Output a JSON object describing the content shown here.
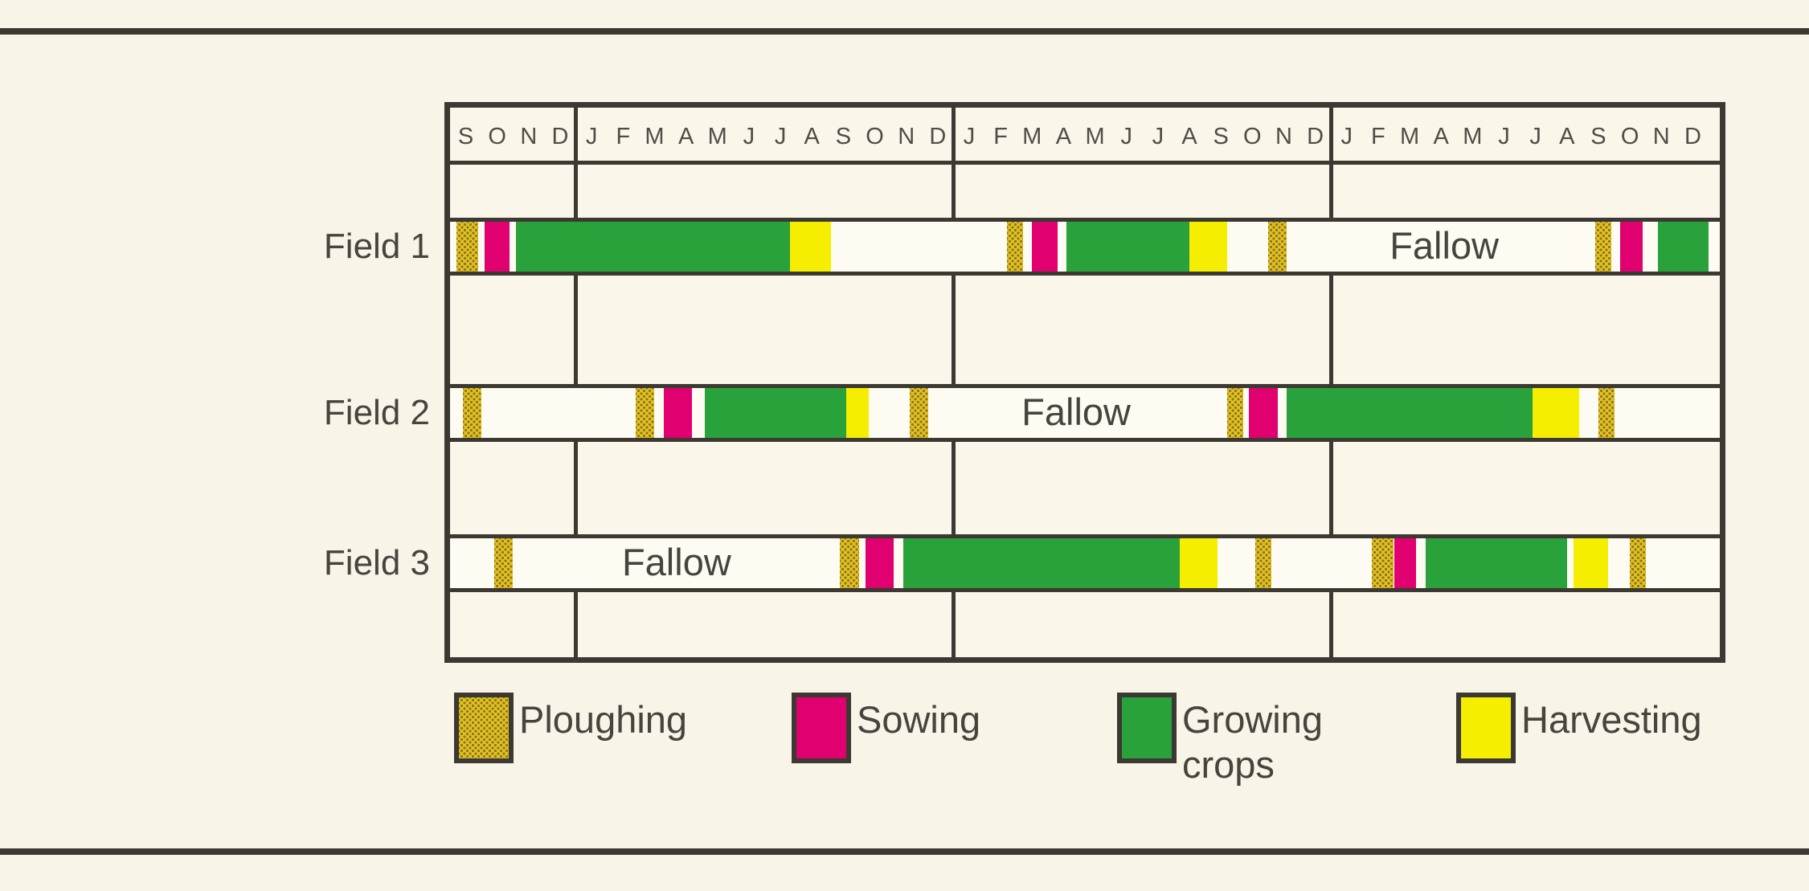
{
  "page": {
    "background_color": "#f8f4e7",
    "line_color": "#3c3933",
    "text_color": "#47443e"
  },
  "chart_data": {
    "type": "bar",
    "subtype": "gantt-crop-rotation-calendar",
    "title": "",
    "x_unit": "month",
    "x_range": [
      0,
      40
    ],
    "grid": true,
    "legend_position": "bottom",
    "month_labels": [
      "S",
      "O",
      "N",
      "D",
      "J",
      "F",
      "M",
      "A",
      "M",
      "J",
      "J",
      "A",
      "S",
      "O",
      "N",
      "D",
      "J",
      "F",
      "M",
      "A",
      "M",
      "J",
      "J",
      "A",
      "S",
      "O",
      "N",
      "D",
      "J",
      "F",
      "M",
      "A",
      "M",
      "J",
      "J",
      "A",
      "S",
      "O",
      "N",
      "D"
    ],
    "year_dividers_after_month": [
      4,
      16,
      28
    ],
    "activities": [
      {
        "name": "Ploughing",
        "key": "ploughing",
        "color": "#dfc02c",
        "dot_color": "#8f7606",
        "pattern": "dotted-hatch"
      },
      {
        "name": "Sowing",
        "key": "sowing",
        "color": "#e10070"
      },
      {
        "name": "Growing crops",
        "key": "growing-crops",
        "color": "#2aa23c"
      },
      {
        "name": "Harvesting",
        "key": "harvesting",
        "color": "#f5ee00"
      }
    ],
    "fallow_text": "Fallow",
    "rows": [
      {
        "label": "Field 1",
        "segments": [
          {
            "activity": "Ploughing",
            "start": 0.2,
            "end": 0.9
          },
          {
            "activity": "Sowing",
            "start": 1.1,
            "end": 1.9
          },
          {
            "activity": "Growing crops",
            "start": 2.1,
            "end": 10.8
          },
          {
            "activity": "Harvesting",
            "start": 10.8,
            "end": 12.1
          },
          {
            "activity": "Ploughing",
            "start": 17.7,
            "end": 18.2
          },
          {
            "activity": "Sowing",
            "start": 18.5,
            "end": 19.3
          },
          {
            "activity": "Growing crops",
            "start": 19.6,
            "end": 23.5
          },
          {
            "activity": "Harvesting",
            "start": 23.5,
            "end": 24.7
          },
          {
            "activity": "Ploughing",
            "start": 26.0,
            "end": 26.6
          },
          {
            "activity": "Ploughing",
            "start": 36.4,
            "end": 36.9
          },
          {
            "activity": "Sowing",
            "start": 37.2,
            "end": 37.9
          },
          {
            "activity": "Growing crops",
            "start": 38.4,
            "end": 40
          }
        ],
        "fallow": {
          "start": 26.6,
          "end": 36.4,
          "center_month": 31.6
        }
      },
      {
        "label": "Field 2",
        "segments": [
          {
            "activity": "Ploughing",
            "start": 0.4,
            "end": 1.0
          },
          {
            "activity": "Ploughing",
            "start": 5.9,
            "end": 6.5
          },
          {
            "activity": "Sowing",
            "start": 6.8,
            "end": 7.7
          },
          {
            "activity": "Growing crops",
            "start": 8.1,
            "end": 12.6
          },
          {
            "activity": "Harvesting",
            "start": 12.6,
            "end": 13.3
          },
          {
            "activity": "Ploughing",
            "start": 14.6,
            "end": 15.2
          },
          {
            "activity": "Ploughing",
            "start": 24.7,
            "end": 25.2
          },
          {
            "activity": "Sowing",
            "start": 25.4,
            "end": 26.3
          },
          {
            "activity": "Growing crops",
            "start": 26.6,
            "end": 34.4
          },
          {
            "activity": "Harvesting",
            "start": 34.4,
            "end": 35.9
          },
          {
            "activity": "Ploughing",
            "start": 36.5,
            "end": 37.0
          }
        ],
        "fallow": {
          "start": 15.2,
          "end": 24.7,
          "center_month": 19.9
        }
      },
      {
        "label": "Field 3",
        "segments": [
          {
            "activity": "Ploughing",
            "start": 1.4,
            "end": 2.0
          },
          {
            "activity": "Ploughing",
            "start": 12.4,
            "end": 13.0
          },
          {
            "activity": "Sowing",
            "start": 13.2,
            "end": 14.1
          },
          {
            "activity": "Growing crops",
            "start": 14.4,
            "end": 23.2
          },
          {
            "activity": "Harvesting",
            "start": 23.2,
            "end": 24.4
          },
          {
            "activity": "Ploughing",
            "start": 25.6,
            "end": 26.1
          },
          {
            "activity": "Ploughing",
            "start": 29.3,
            "end": 30.0
          },
          {
            "activity": "Sowing",
            "start": 30.0,
            "end": 30.7
          },
          {
            "activity": "Growing crops",
            "start": 31.0,
            "end": 35.5
          },
          {
            "activity": "Harvesting",
            "start": 35.7,
            "end": 36.8
          },
          {
            "activity": "Ploughing",
            "start": 37.5,
            "end": 38.0
          }
        ],
        "fallow": {
          "start": 2.0,
          "end": 12.4,
          "center_month": 7.2
        }
      }
    ]
  }
}
